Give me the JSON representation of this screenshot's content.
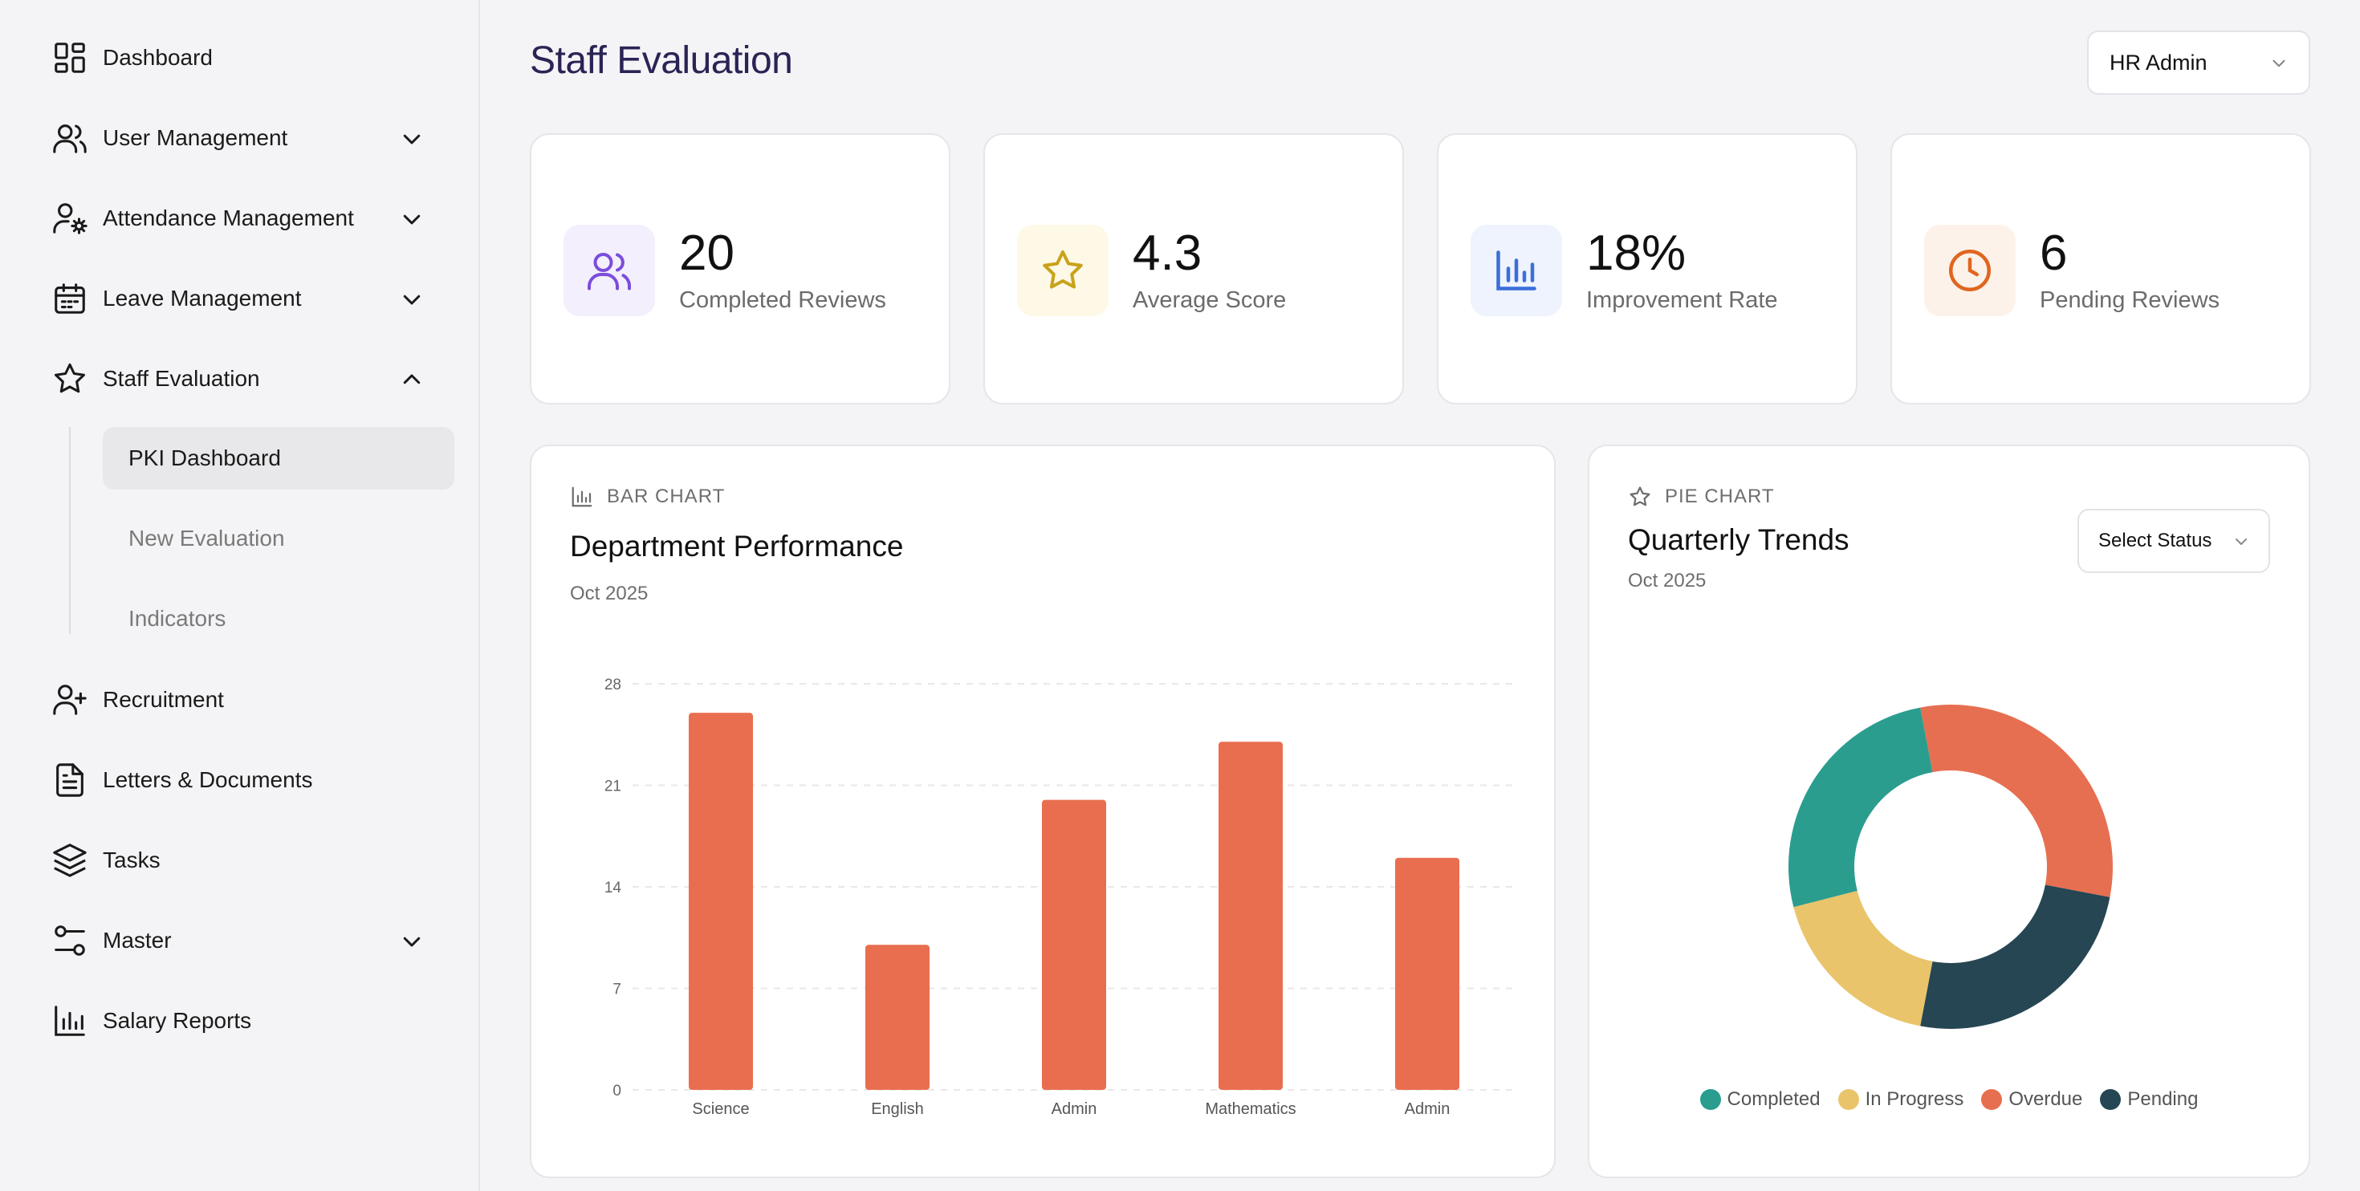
{
  "sidebar": {
    "items": [
      {
        "label": "Dashboard",
        "icon": "dashboard-icon"
      },
      {
        "label": "User Management",
        "icon": "users-icon"
      },
      {
        "label": "Attendance Management",
        "icon": "user-cog-icon"
      },
      {
        "label": "Leave Management",
        "icon": "calendar-icon"
      },
      {
        "label": "Staff Evaluation",
        "icon": "star-icon"
      },
      {
        "label": "Recruitment",
        "icon": "user-plus-icon"
      },
      {
        "label": "Letters & Documents",
        "icon": "document-icon"
      },
      {
        "label": "Tasks",
        "icon": "layers-icon"
      },
      {
        "label": "Master",
        "icon": "sliders-icon"
      },
      {
        "label": "Salary Reports",
        "icon": "bar-chart-icon"
      }
    ],
    "sub_items": [
      {
        "label": "PKI Dashboard",
        "active": true
      },
      {
        "label": "New Evaluation",
        "active": false
      },
      {
        "label": "Indicators",
        "active": false
      }
    ]
  },
  "header": {
    "title": "Staff Evaluation",
    "role": "HR Admin"
  },
  "stats": [
    {
      "value": "20",
      "label": "Completed Reviews",
      "icon": "users-icon",
      "color": "#7c4ddb",
      "bg": "#f3effd"
    },
    {
      "value": "4.3",
      "label": "Average Score",
      "icon": "star-icon",
      "color": "#c9a219",
      "bg": "#fdf9e6"
    },
    {
      "value": "18%",
      "label": "Improvement Rate",
      "icon": "bar-chart-icon",
      "color": "#3a6fd8",
      "bg": "#eef3fd"
    },
    {
      "value": "6",
      "label": "Pending Reviews",
      "icon": "clock-icon",
      "color": "#e0661f",
      "bg": "#fdf2ea"
    }
  ],
  "bar_card": {
    "kicker": "BAR CHART",
    "title": "Department Performance",
    "subtitle": "Oct 2025"
  },
  "pie_card": {
    "kicker": "PIE CHART",
    "title": "Quarterly Trends",
    "subtitle": "Oct 2025",
    "select_placeholder": "Select Status"
  },
  "chart_data": [
    {
      "type": "bar",
      "categories": [
        "Science",
        "English",
        "Admin",
        "Mathematics",
        "Admin"
      ],
      "values": [
        26,
        10,
        20,
        24,
        16
      ],
      "ylim": [
        0,
        28
      ],
      "yticks": [
        0,
        7,
        14,
        21,
        28
      ],
      "grid": true,
      "color": "#e96e50"
    },
    {
      "type": "pie",
      "donut": true,
      "labels": [
        "Completed",
        "In Progress",
        "Overdue",
        "Pending"
      ],
      "values": [
        26,
        18,
        31,
        25
      ],
      "colors": [
        "#2a9d8f",
        "#e9c46a",
        "#e76f51",
        "#264653"
      ],
      "legend": "bottom"
    }
  ]
}
